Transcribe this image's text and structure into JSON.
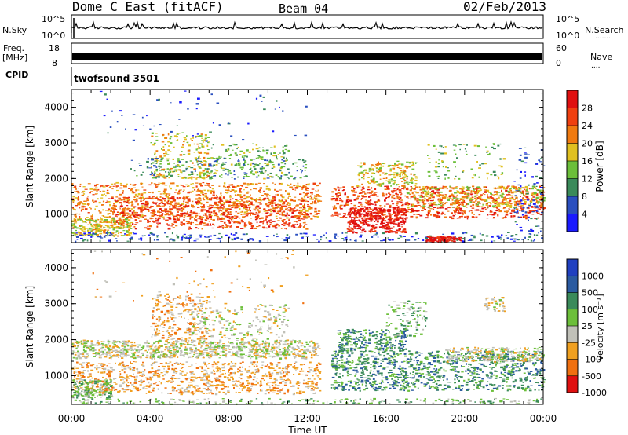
{
  "header": {
    "radar": "Dome C East (fitACF)",
    "beam": "Beam 04",
    "date": "02/Feb/2013"
  },
  "summary": {
    "nsky_label": "N.Sky",
    "nsky_ticks": [
      "10^5",
      "10^0"
    ],
    "nsearch_label": "N.Search",
    "nsearch_dots": "........",
    "nsearch_ticks": [
      "10^5",
      "10^0"
    ],
    "freq_label": "Freq.",
    "freq_unit": "[MHz]",
    "freq_ticks": [
      "18",
      "8"
    ],
    "nave_label": "Nave",
    "nave_dots": "....",
    "nave_ticks": [
      "60",
      "0"
    ],
    "cpid_label": "CPID",
    "cpid_value": "twofsound 3501"
  },
  "colors": {
    "power": [
      "#1a1aff",
      "#2a4fbf",
      "#3a8a5a",
      "#6cbf3a",
      "#e0c020",
      "#f07a10",
      "#f04010",
      "#e01010"
    ],
    "velocity": [
      "#2040c0",
      "#2a5aa0",
      "#3a8a5a",
      "#6cbf3a",
      "#c0c0b8",
      "#f0a020",
      "#f07010",
      "#e01010"
    ]
  },
  "chart_data": [
    {
      "type": "heatmap",
      "panel": "power",
      "xlabel": "",
      "ylabel": "Slant Range [km]",
      "ylim": [
        200,
        4500
      ],
      "xlim_hours": [
        0,
        24
      ],
      "y_ticks": [
        "1000",
        "2000",
        "3000",
        "4000"
      ],
      "colorbar_label": "Power [dB]",
      "colorbar_ticks": [
        "4",
        "8",
        "12",
        "16",
        "20",
        "24",
        "28"
      ]
    },
    {
      "type": "heatmap",
      "panel": "velocity",
      "xlabel": "Time UT",
      "ylabel": "Slant Range [km]",
      "ylim": [
        200,
        4500
      ],
      "xlim_hours": [
        0,
        24
      ],
      "y_ticks": [
        "1000",
        "2000",
        "3000",
        "4000"
      ],
      "x_ticks": [
        "00:00",
        "04:00",
        "08:00",
        "12:00",
        "16:00",
        "20:00",
        "00:00"
      ],
      "colorbar_label": "Velocity [m s⁻¹]",
      "colorbar_ticks": [
        "1000",
        "500",
        "100",
        "25",
        "-25",
        "-100",
        "-500",
        "-1000"
      ]
    }
  ]
}
